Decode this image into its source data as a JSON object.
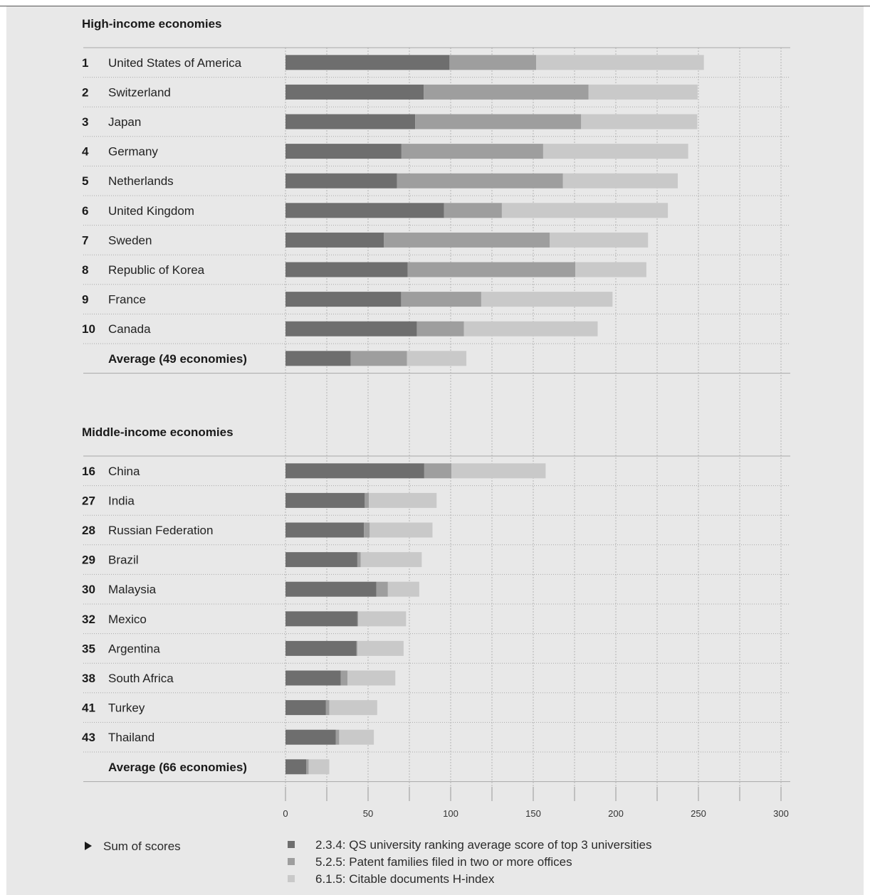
{
  "chart_data": {
    "type": "bar",
    "orientation": "horizontal",
    "stacked": true,
    "xlim": [
      0,
      300
    ],
    "x_ticks": [
      "0",
      "50",
      "100",
      "150",
      "200",
      "250",
      "300"
    ],
    "grid": true,
    "series_names": [
      "2.3.4: QS university ranking average score of top 3 universities",
      "5.2.5: Patent families filed in two or more offices",
      "6.1.5: Citable documents H-index"
    ],
    "series_colors": [
      "#6e6e6e",
      "#9e9e9e",
      "#c9c9c9"
    ],
    "groups": [
      {
        "title": "High-income economies",
        "rows": [
          {
            "rank": "1",
            "label": "United States of America",
            "values": [
              99.3,
              52.5,
              101.5
            ]
          },
          {
            "rank": "2",
            "label": "Switzerland",
            "values": [
              83.7,
              99.8,
              66.0
            ]
          },
          {
            "rank": "3",
            "label": "Japan",
            "values": [
              78.5,
              100.5,
              70.3
            ]
          },
          {
            "rank": "4",
            "label": "Germany",
            "values": [
              70.2,
              85.8,
              87.8
            ]
          },
          {
            "rank": "5",
            "label": "Netherlands",
            "values": [
              67.5,
              100.5,
              69.5
            ]
          },
          {
            "rank": "6",
            "label": "United Kingdom",
            "values": [
              96.0,
              35.0,
              100.5
            ]
          },
          {
            "rank": "7",
            "label": "Sweden",
            "values": [
              59.5,
              100.5,
              59.5
            ]
          },
          {
            "rank": "8",
            "label": "Republic of Korea",
            "values": [
              74.0,
              101.5,
              43.0
            ]
          },
          {
            "rank": "9",
            "label": "France",
            "values": [
              70.0,
              48.5,
              79.5
            ]
          },
          {
            "rank": "10",
            "label": "Canada",
            "values": [
              79.5,
              28.5,
              81.0
            ]
          }
        ],
        "average": {
          "label": "Average (49 economies)",
          "values": [
            39.5,
            34.0,
            36.0
          ]
        }
      },
      {
        "title": "Middle-income economies",
        "rows": [
          {
            "rank": "16",
            "label": "China",
            "values": [
              84.0,
              16.5,
              57.0
            ]
          },
          {
            "rank": "27",
            "label": "India",
            "values": [
              48.0,
              2.5,
              41.0
            ]
          },
          {
            "rank": "28",
            "label": "Russian Federation",
            "values": [
              47.5,
              3.5,
              38.0
            ]
          },
          {
            "rank": "29",
            "label": "Brazil",
            "values": [
              43.5,
              2.0,
              37.0
            ]
          },
          {
            "rank": "30",
            "label": "Malaysia",
            "values": [
              55.0,
              7.0,
              19.0
            ]
          },
          {
            "rank": "32",
            "label": "Mexico",
            "values": [
              43.5,
              0.5,
              29.0
            ]
          },
          {
            "rank": "35",
            "label": "Argentina",
            "values": [
              43.0,
              0.5,
              28.0
            ]
          },
          {
            "rank": "38",
            "label": "South Africa",
            "values": [
              33.5,
              4.0,
              29.0
            ]
          },
          {
            "rank": "41",
            "label": "Turkey",
            "values": [
              24.5,
              2.0,
              29.0
            ]
          },
          {
            "rank": "43",
            "label": "Thailand",
            "values": [
              30.5,
              2.0,
              21.0
            ]
          }
        ],
        "average": {
          "label": "Average (66 economies)",
          "values": [
            12.5,
            1.5,
            12.5
          ]
        }
      }
    ],
    "legend": {
      "placement": "bottom",
      "sum_label": "Sum of scores"
    }
  }
}
